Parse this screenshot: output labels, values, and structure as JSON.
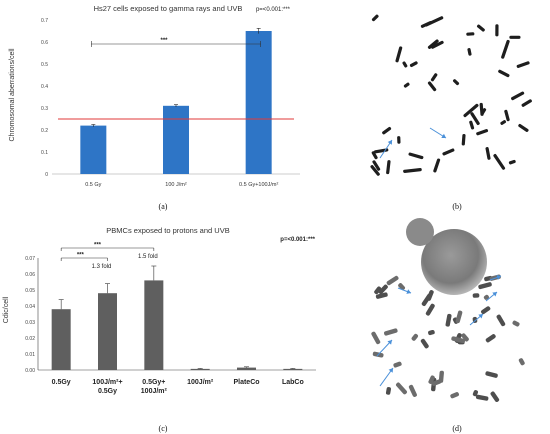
{
  "panels": {
    "a": "(a)",
    "b": "(b)",
    "c": "(c)",
    "d": "(d)"
  },
  "chart_data": [
    {
      "type": "bar",
      "title": "Hs27 cells exposed to gamma rays and UVB",
      "ylabel": "Chromosomal aberrations/cell",
      "xlabel": "",
      "categories": [
        "0.5 Gy",
        "100 J/m²",
        "0.5 Gy+100J/m²"
      ],
      "values": [
        0.22,
        0.31,
        0.65
      ],
      "errors": [
        0.005,
        0.005,
        0.012
      ],
      "ylim": [
        0,
        0.7
      ],
      "yticks": [
        "0",
        "0.1",
        "0.2",
        "0.3",
        "0.4",
        "0.5",
        "0.6",
        "0.7"
      ],
      "bar_color": "#2e75c6",
      "reference_line": {
        "value": 0.25,
        "color": "#e23a3a"
      },
      "significance": {
        "text": "***",
        "from": 0,
        "to": 2
      },
      "pvalue_note": "p=<0.001:***",
      "grid": false
    },
    {
      "type": "bar",
      "title": "PBMCs exposed to protons and UVB",
      "ylabel": "Cdic/cell",
      "xlabel": "",
      "categories": [
        [
          "0.5Gy"
        ],
        [
          "100J/m²+",
          "0.5Gy"
        ],
        [
          "0.5Gy+",
          "100J/m²"
        ],
        [
          "100J/m²"
        ],
        [
          "PlateCo"
        ],
        [
          "LabCo"
        ]
      ],
      "values": [
        0.038,
        0.048,
        0.056,
        0.0007,
        0.0015,
        0.0007
      ],
      "errors": [
        0.006,
        0.006,
        0.009,
        0.0003,
        0.0005,
        0.0003
      ],
      "ylim": [
        0,
        0.07
      ],
      "yticks": [
        "0.00",
        "0.01",
        "0.02",
        "0.03",
        "0.04",
        "0.05",
        "0.06",
        "0.07"
      ],
      "bar_color": "#5f5f5f",
      "significance": [
        {
          "text": "***",
          "from": 0,
          "to": 1,
          "fold": "1.3 fold"
        },
        {
          "text": "***",
          "from": 0,
          "to": 2,
          "fold": "1.5 fold"
        }
      ],
      "pvalue_note": "p=<0.001:***",
      "grid": false
    }
  ],
  "images": {
    "b": {
      "description": "metaphase-spread-chromosomes",
      "arrow_color": "#4a90d9"
    },
    "d": {
      "description": "metaphase-spread-chromosomes-with-nucleus",
      "arrow_color": "#4a90d9"
    }
  }
}
